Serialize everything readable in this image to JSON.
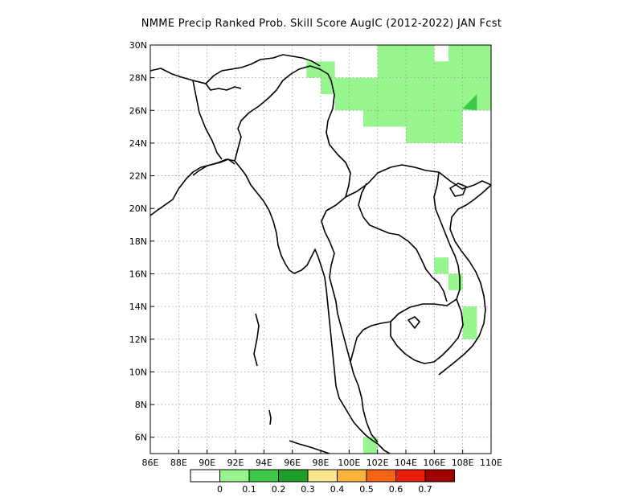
{
  "title": "NMME Precip Ranked Prob. Skill Score AugIC (2012-2022) JAN Fcst",
  "map": {
    "lon_range": [
      86,
      110
    ],
    "lat_range": [
      5,
      30
    ],
    "lon_ticks": [
      "86E",
      "88E",
      "90E",
      "92E",
      "94E",
      "96E",
      "98E",
      "100E",
      "102E",
      "104E",
      "106E",
      "108E",
      "110E"
    ],
    "lat_ticks": [
      "6N",
      "8N",
      "10N",
      "12N",
      "14N",
      "16N",
      "18N",
      "20N",
      "22N",
      "24N",
      "26N",
      "28N",
      "30N"
    ],
    "grid": true,
    "skill_cells_0_1_to_0_2": [
      {
        "lon": [
          97,
          99
        ],
        "lat": [
          28,
          29
        ]
      },
      {
        "lon": [
          98,
          99
        ],
        "lat": [
          27,
          28
        ]
      },
      {
        "lon": [
          99,
          101
        ],
        "lat": [
          26,
          28
        ]
      },
      {
        "lon": [
          101,
          104
        ],
        "lat": [
          25,
          28
        ]
      },
      {
        "lon": [
          104,
          106
        ],
        "lat": [
          25,
          30
        ]
      },
      {
        "lon": [
          102,
          104
        ],
        "lat": [
          28,
          30
        ]
      },
      {
        "lon": [
          106,
          108
        ],
        "lat": [
          24,
          29
        ]
      },
      {
        "lon": [
          107,
          110
        ],
        "lat": [
          26,
          30
        ]
      },
      {
        "lon": [
          104,
          106
        ],
        "lat": [
          24,
          25
        ]
      },
      {
        "lon": [
          106,
          107
        ],
        "lat": [
          16,
          17
        ]
      },
      {
        "lon": [
          107,
          108
        ],
        "lat": [
          15,
          16
        ]
      },
      {
        "lon": [
          108,
          109
        ],
        "lat": [
          12,
          14
        ]
      },
      {
        "lon": [
          101,
          102
        ],
        "lat": [
          5,
          6
        ]
      }
    ],
    "skill_cells_0_2_to_0_3": [
      {
        "lon": [
          108,
          109
        ],
        "lat": [
          26,
          27
        ]
      }
    ]
  },
  "colorbar": {
    "labels": [
      "0",
      "0.1",
      "0.2",
      "0.3",
      "0.4",
      "0.5",
      "0.6",
      "0.7"
    ],
    "colors": [
      "#ffffff",
      "#96f58c",
      "#3cc846",
      "#1e9e28",
      "#fae68c",
      "#fab43c",
      "#f56414",
      "#e61e0a",
      "#a00000"
    ]
  }
}
